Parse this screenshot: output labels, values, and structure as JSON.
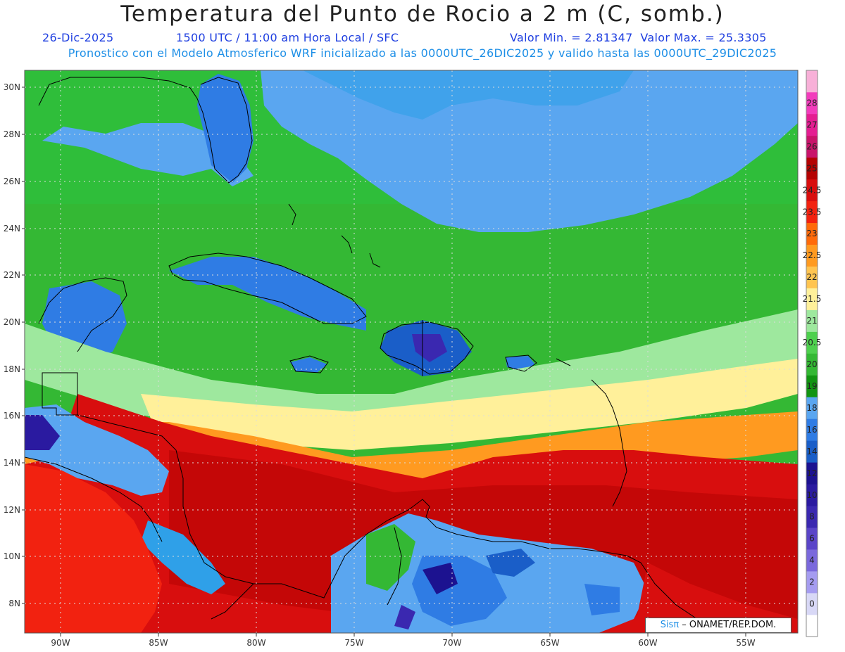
{
  "title": "Temperatura del Punto de Rocio a 2 m (C, somb.)",
  "subtitle": {
    "date": "26-Dic-2025",
    "time": "1500 UTC / 11:00 am Hora Local / SFC",
    "minmax": "Valor Min. = 2.81347  Valor Max. = 25.3305"
  },
  "model_line": "Pronostico con el Modelo Atmosferico WRF inicializado a las 0000UTC_26DIC2025 y valido hasta las  0000UTC_29DIC2025",
  "lat_labels": [
    "30N",
    "28N",
    "26N",
    "24N",
    "22N",
    "20N",
    "18N",
    "16N",
    "14N",
    "12N",
    "10N",
    "8N"
  ],
  "lon_labels": [
    "90W",
    "85W",
    "80W",
    "75W",
    "70W",
    "65W",
    "60W",
    "55W"
  ],
  "colorbar": {
    "labels": [
      "0",
      "2",
      "4",
      "6",
      "8",
      "10",
      "12",
      "14",
      "16",
      "18",
      "19",
      "20",
      "20.5",
      "21",
      "21.5",
      "22",
      "22.5",
      "23",
      "23.5",
      "24.5",
      "25",
      "26",
      "27",
      "28"
    ],
    "colors": [
      "#ffffff",
      "#d8d8f6",
      "#a59cf0",
      "#7a69dc",
      "#5a45c8",
      "#3a28b0",
      "#2a1aa0",
      "#1c1290",
      "#1a5ec8",
      "#2f7ce4",
      "#5aa6f0",
      "#129412",
      "#34b834",
      "#4ed04e",
      "#9ee89e",
      "#fff09a",
      "#ffc450",
      "#ff9a20",
      "#ff6a0a",
      "#f22210",
      "#d80e0e",
      "#b40202",
      "#c8146a",
      "#e41e92",
      "#f23cbc",
      "#f8b0d8"
    ]
  },
  "credit": {
    "sis": "Sisπ",
    "rest": " – ONAMET/REP.DOM."
  },
  "colors": {
    "title": "#222222",
    "subtitle_blue": "#1f3fe0",
    "model_blue": "#1e8fe6"
  }
}
